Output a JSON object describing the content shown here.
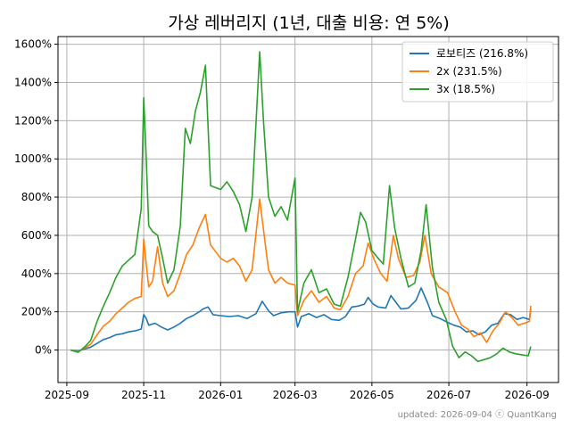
{
  "chart_data": {
    "type": "line",
    "title": "가상 레버리지 (1년, 대출 비용: 연 5%)",
    "xlabel": "",
    "ylabel": "",
    "xlim": [
      "2025-08-25",
      "2026-09-26"
    ],
    "ylim": [
      -170,
      1640
    ],
    "grid": true,
    "legend_position": "top-right",
    "x_ticks": [
      "2025-09-01",
      "2025-11-01",
      "2026-01-01",
      "2026-03-01",
      "2026-05-01",
      "2026-07-01",
      "2026-09-01"
    ],
    "x_tick_labels": [
      "2025-09",
      "2025-11",
      "2026-01",
      "2026-03",
      "2026-05",
      "2026-07",
      "2026-09"
    ],
    "y_ticks": [
      0,
      200,
      400,
      600,
      800,
      1000,
      1200,
      1400,
      1600
    ],
    "y_tick_labels": [
      "0%",
      "200%",
      "400%",
      "600%",
      "800%",
      "1000%",
      "1200%",
      "1400%",
      "1600%"
    ],
    "series": [
      {
        "name": "로보티즈 (216.8%)",
        "color": "#1f77b4",
        "points": [
          [
            "2025-09-04",
            0
          ],
          [
            "2025-09-10",
            -5
          ],
          [
            "2025-09-15",
            5
          ],
          [
            "2025-09-20",
            15
          ],
          [
            "2025-09-25",
            35
          ],
          [
            "2025-09-30",
            55
          ],
          [
            "2025-10-05",
            65
          ],
          [
            "2025-10-10",
            80
          ],
          [
            "2025-10-15",
            85
          ],
          [
            "2025-10-20",
            95
          ],
          [
            "2025-10-25",
            100
          ],
          [
            "2025-10-30",
            110
          ],
          [
            "2025-11-01",
            185
          ],
          [
            "2025-11-03",
            165
          ],
          [
            "2025-11-05",
            130
          ],
          [
            "2025-11-10",
            140
          ],
          [
            "2025-11-15",
            120
          ],
          [
            "2025-11-20",
            105
          ],
          [
            "2025-11-25",
            120
          ],
          [
            "2025-11-30",
            140
          ],
          [
            "2025-12-05",
            165
          ],
          [
            "2025-12-10",
            180
          ],
          [
            "2025-12-15",
            200
          ],
          [
            "2025-12-18",
            215
          ],
          [
            "2025-12-22",
            225
          ],
          [
            "2025-12-26",
            185
          ],
          [
            "2026-01-01",
            180
          ],
          [
            "2026-01-08",
            175
          ],
          [
            "2026-01-15",
            180
          ],
          [
            "2026-01-22",
            165
          ],
          [
            "2026-01-29",
            190
          ],
          [
            "2026-02-03",
            255
          ],
          [
            "2026-02-08",
            205
          ],
          [
            "2026-02-12",
            180
          ],
          [
            "2026-02-18",
            195
          ],
          [
            "2026-02-24",
            200
          ],
          [
            "2026-03-01",
            200
          ],
          [
            "2026-03-03",
            120
          ],
          [
            "2026-03-06",
            175
          ],
          [
            "2026-03-12",
            190
          ],
          [
            "2026-03-18",
            170
          ],
          [
            "2026-03-24",
            185
          ],
          [
            "2026-03-30",
            160
          ],
          [
            "2026-04-05",
            155
          ],
          [
            "2026-04-10",
            175
          ],
          [
            "2026-04-15",
            225
          ],
          [
            "2026-04-20",
            230
          ],
          [
            "2026-04-25",
            240
          ],
          [
            "2026-04-28",
            275
          ],
          [
            "2026-05-02",
            240
          ],
          [
            "2026-05-06",
            225
          ],
          [
            "2026-05-12",
            220
          ],
          [
            "2026-05-16",
            285
          ],
          [
            "2026-05-20",
            250
          ],
          [
            "2026-05-24",
            215
          ],
          [
            "2026-05-30",
            220
          ],
          [
            "2026-06-05",
            260
          ],
          [
            "2026-06-09",
            325
          ],
          [
            "2026-06-14",
            250
          ],
          [
            "2026-06-18",
            180
          ],
          [
            "2026-06-24",
            165
          ],
          [
            "2026-06-30",
            145
          ],
          [
            "2026-07-05",
            130
          ],
          [
            "2026-07-10",
            120
          ],
          [
            "2026-07-15",
            95
          ],
          [
            "2026-07-20",
            100
          ],
          [
            "2026-07-25",
            80
          ],
          [
            "2026-07-30",
            95
          ],
          [
            "2026-08-04",
            130
          ],
          [
            "2026-08-09",
            140
          ],
          [
            "2026-08-14",
            190
          ],
          [
            "2026-08-19",
            185
          ],
          [
            "2026-08-24",
            160
          ],
          [
            "2026-08-29",
            170
          ],
          [
            "2026-09-03",
            160
          ],
          [
            "2026-09-04",
            216.8
          ]
        ]
      },
      {
        "name": "2x (231.5%)",
        "color": "#ff7f0e",
        "points": [
          [
            "2025-09-04",
            0
          ],
          [
            "2025-09-10",
            -8
          ],
          [
            "2025-09-15",
            10
          ],
          [
            "2025-09-20",
            30
          ],
          [
            "2025-09-25",
            80
          ],
          [
            "2025-09-30",
            125
          ],
          [
            "2025-10-05",
            150
          ],
          [
            "2025-10-10",
            190
          ],
          [
            "2025-10-15",
            220
          ],
          [
            "2025-10-20",
            250
          ],
          [
            "2025-10-25",
            270
          ],
          [
            "2025-10-30",
            280
          ],
          [
            "2025-11-01",
            580
          ],
          [
            "2025-11-03",
            450
          ],
          [
            "2025-11-05",
            330
          ],
          [
            "2025-11-08",
            360
          ],
          [
            "2025-11-12",
            540
          ],
          [
            "2025-11-16",
            350
          ],
          [
            "2025-11-20",
            280
          ],
          [
            "2025-11-25",
            310
          ],
          [
            "2025-11-30",
            400
          ],
          [
            "2025-12-05",
            500
          ],
          [
            "2025-12-10",
            550
          ],
          [
            "2025-12-15",
            640
          ],
          [
            "2025-12-20",
            710
          ],
          [
            "2025-12-24",
            550
          ],
          [
            "2026-01-01",
            480
          ],
          [
            "2026-01-06",
            460
          ],
          [
            "2026-01-11",
            480
          ],
          [
            "2026-01-16",
            440
          ],
          [
            "2026-01-21",
            360
          ],
          [
            "2026-01-26",
            420
          ],
          [
            "2026-02-01",
            790
          ],
          [
            "2026-02-04",
            630
          ],
          [
            "2026-02-08",
            420
          ],
          [
            "2026-02-13",
            350
          ],
          [
            "2026-02-18",
            380
          ],
          [
            "2026-02-23",
            350
          ],
          [
            "2026-03-01",
            340
          ],
          [
            "2026-03-03",
            180
          ],
          [
            "2026-03-08",
            260
          ],
          [
            "2026-03-14",
            310
          ],
          [
            "2026-03-20",
            250
          ],
          [
            "2026-03-26",
            280
          ],
          [
            "2026-04-01",
            220
          ],
          [
            "2026-04-06",
            210
          ],
          [
            "2026-04-12",
            280
          ],
          [
            "2026-04-18",
            400
          ],
          [
            "2026-04-24",
            440
          ],
          [
            "2026-04-28",
            560
          ],
          [
            "2026-05-03",
            470
          ],
          [
            "2026-05-08",
            400
          ],
          [
            "2026-05-13",
            360
          ],
          [
            "2026-05-18",
            600
          ],
          [
            "2026-05-22",
            480
          ],
          [
            "2026-05-28",
            380
          ],
          [
            "2026-06-03",
            390
          ],
          [
            "2026-06-08",
            460
          ],
          [
            "2026-06-12",
            600
          ],
          [
            "2026-06-17",
            400
          ],
          [
            "2026-06-23",
            330
          ],
          [
            "2026-06-30",
            300
          ],
          [
            "2026-07-06",
            200
          ],
          [
            "2026-07-11",
            130
          ],
          [
            "2026-07-16",
            110
          ],
          [
            "2026-07-21",
            70
          ],
          [
            "2026-07-26",
            90
          ],
          [
            "2026-07-31",
            40
          ],
          [
            "2026-08-05",
            100
          ],
          [
            "2026-08-10",
            140
          ],
          [
            "2026-08-15",
            200
          ],
          [
            "2026-08-20",
            170
          ],
          [
            "2026-08-25",
            130
          ],
          [
            "2026-08-30",
            140
          ],
          [
            "2026-09-03",
            150
          ],
          [
            "2026-09-04",
            231.5
          ]
        ]
      },
      {
        "name": "3x (18.5%)",
        "color": "#2ca02c",
        "points": [
          [
            "2025-09-04",
            0
          ],
          [
            "2025-09-10",
            -12
          ],
          [
            "2025-09-15",
            15
          ],
          [
            "2025-09-20",
            50
          ],
          [
            "2025-09-25",
            150
          ],
          [
            "2025-09-30",
            230
          ],
          [
            "2025-10-05",
            300
          ],
          [
            "2025-10-10",
            380
          ],
          [
            "2025-10-15",
            440
          ],
          [
            "2025-10-20",
            470
          ],
          [
            "2025-10-25",
            500
          ],
          [
            "2025-10-30",
            740
          ],
          [
            "2025-11-01",
            1320
          ],
          [
            "2025-11-03",
            1000
          ],
          [
            "2025-11-05",
            650
          ],
          [
            "2025-11-08",
            620
          ],
          [
            "2025-11-12",
            600
          ],
          [
            "2025-11-16",
            480
          ],
          [
            "2025-11-20",
            350
          ],
          [
            "2025-11-25",
            420
          ],
          [
            "2025-11-30",
            650
          ],
          [
            "2025-12-04",
            1160
          ],
          [
            "2025-12-08",
            1080
          ],
          [
            "2025-12-12",
            1250
          ],
          [
            "2025-12-16",
            1350
          ],
          [
            "2025-12-20",
            1490
          ],
          [
            "2025-12-24",
            860
          ],
          [
            "2026-01-01",
            840
          ],
          [
            "2026-01-06",
            880
          ],
          [
            "2026-01-11",
            830
          ],
          [
            "2026-01-16",
            760
          ],
          [
            "2026-01-21",
            620
          ],
          [
            "2026-01-26",
            800
          ],
          [
            "2026-02-01",
            1560
          ],
          [
            "2026-02-04",
            1200
          ],
          [
            "2026-02-08",
            800
          ],
          [
            "2026-02-13",
            700
          ],
          [
            "2026-02-18",
            750
          ],
          [
            "2026-02-23",
            680
          ],
          [
            "2026-03-01",
            900
          ],
          [
            "2026-03-03",
            200
          ],
          [
            "2026-03-08",
            350
          ],
          [
            "2026-03-14",
            420
          ],
          [
            "2026-03-20",
            300
          ],
          [
            "2026-03-26",
            320
          ],
          [
            "2026-04-01",
            240
          ],
          [
            "2026-04-06",
            230
          ],
          [
            "2026-04-12",
            380
          ],
          [
            "2026-04-18",
            580
          ],
          [
            "2026-04-22",
            720
          ],
          [
            "2026-04-26",
            670
          ],
          [
            "2026-05-01",
            520
          ],
          [
            "2026-05-06",
            480
          ],
          [
            "2026-05-10",
            450
          ],
          [
            "2026-05-15",
            860
          ],
          [
            "2026-05-19",
            640
          ],
          [
            "2026-05-24",
            480
          ],
          [
            "2026-05-30",
            330
          ],
          [
            "2026-06-04",
            350
          ],
          [
            "2026-06-09",
            520
          ],
          [
            "2026-06-13",
            760
          ],
          [
            "2026-06-18",
            430
          ],
          [
            "2026-06-23",
            250
          ],
          [
            "2026-06-29",
            160
          ],
          [
            "2026-07-04",
            20
          ],
          [
            "2026-07-09",
            -40
          ],
          [
            "2026-07-14",
            -10
          ],
          [
            "2026-07-19",
            -30
          ],
          [
            "2026-07-24",
            -60
          ],
          [
            "2026-07-29",
            -50
          ],
          [
            "2026-08-03",
            -40
          ],
          [
            "2026-08-08",
            -20
          ],
          [
            "2026-08-13",
            10
          ],
          [
            "2026-08-18",
            -10
          ],
          [
            "2026-08-23",
            -20
          ],
          [
            "2026-08-28",
            -25
          ],
          [
            "2026-09-02",
            -30
          ],
          [
            "2026-09-04",
            18.5
          ]
        ]
      }
    ],
    "credit": "updated: 2026-09-04 ⓒ QuantKang"
  }
}
